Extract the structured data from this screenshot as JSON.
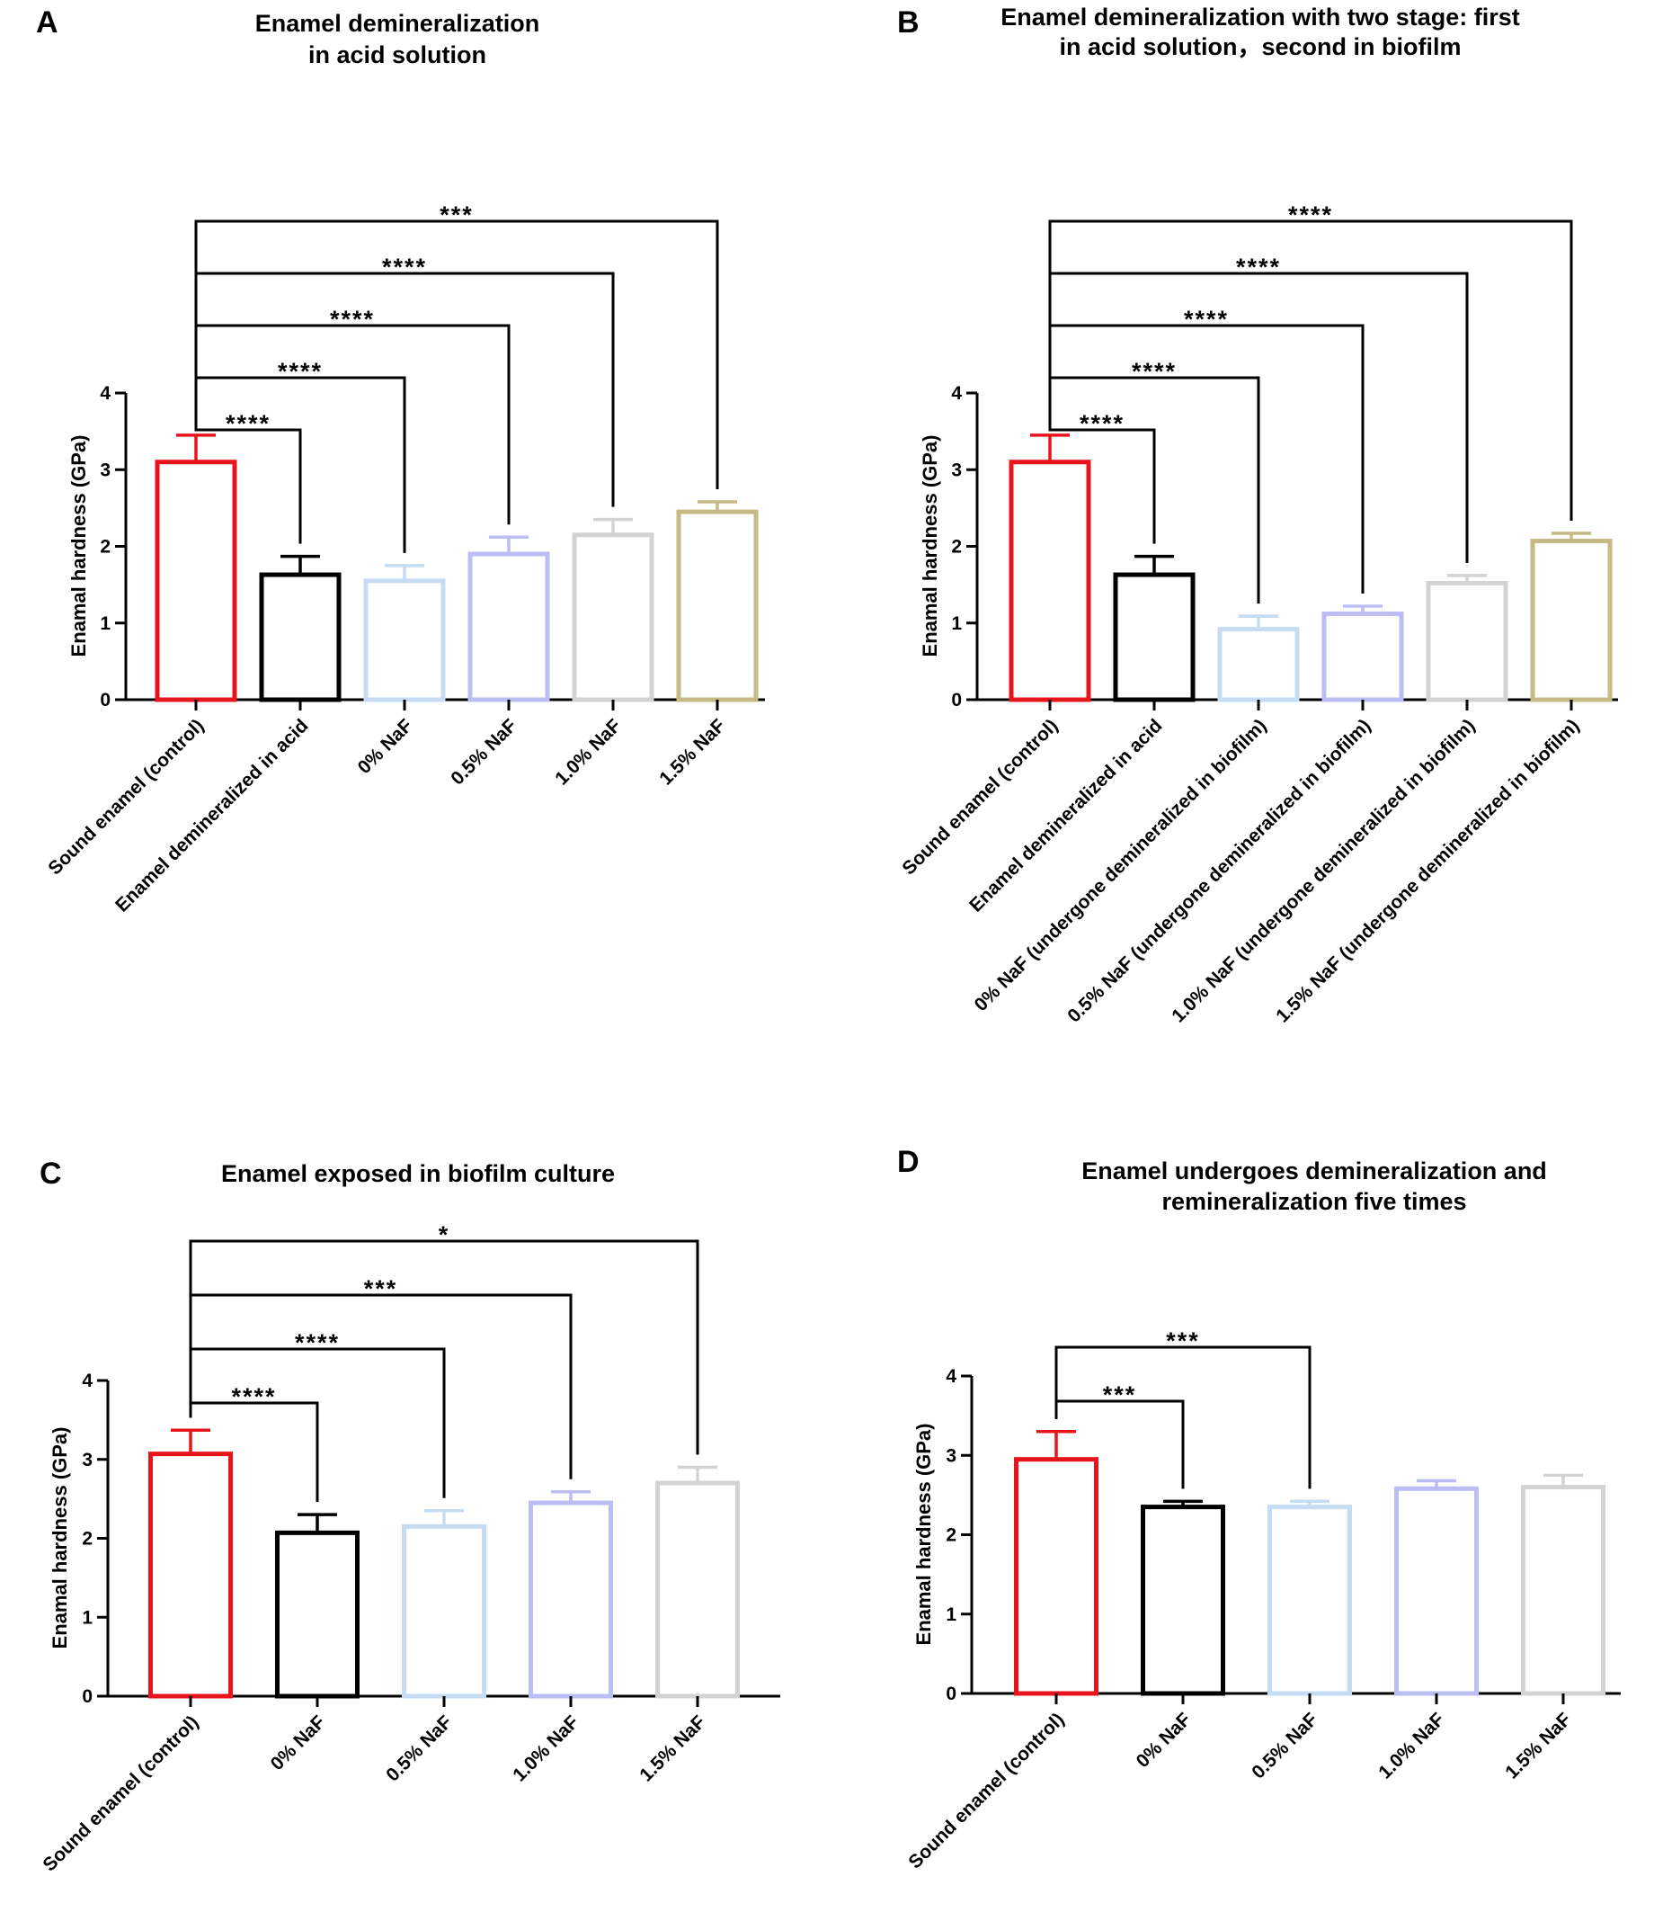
{
  "chart_data": [
    {
      "panel": "A",
      "type": "bar",
      "title": [
        "Enamel demineralization",
        "in acid solution"
      ],
      "ylabel": "Enamal hardness (GPa)",
      "ylim": [
        0,
        4
      ],
      "yticks": [
        "0",
        "1",
        "2",
        "3",
        "4"
      ],
      "categories": [
        "Sound enamel (control)",
        "Enamel demineralized in acid",
        "0%  NaF",
        "0.5% NaF",
        "1.0% NaF",
        "1.5% NaF"
      ],
      "values": [
        3.1,
        1.63,
        1.55,
        1.9,
        2.15,
        2.45
      ],
      "errors": [
        0.35,
        0.24,
        0.2,
        0.22,
        0.2,
        0.13
      ],
      "colors": [
        "#e8141c",
        "#000000",
        "#c6dcf3",
        "#bcbdf2",
        "#d3d3d3",
        "#c7b985"
      ],
      "comparisons": [
        {
          "to": 1,
          "label": "****"
        },
        {
          "to": 2,
          "label": "****"
        },
        {
          "to": 3,
          "label": "****"
        },
        {
          "to": 4,
          "label": "****"
        },
        {
          "to": 5,
          "label": "***"
        }
      ]
    },
    {
      "panel": "B",
      "type": "bar",
      "title": [
        "Enamel demineralization with two stage: first",
        "in acid solution，second in biofilm"
      ],
      "ylabel": "Enamal hardness (GPa)",
      "ylim": [
        0,
        4
      ],
      "yticks": [
        "0",
        "1",
        "2",
        "3",
        "4"
      ],
      "categories": [
        "Sound enamel (control)",
        "Enamel demineralized in acid",
        "0%  NaF (undergone demineralized in biofilm)",
        "0.5% NaF (undergone demineralized in biofilm)",
        "1.0% NaF (undergone demineralized in biofilm)",
        "1.5% NaF (undergone demineralized in biofilm)"
      ],
      "values": [
        3.1,
        1.63,
        0.92,
        1.12,
        1.52,
        2.07
      ],
      "errors": [
        0.35,
        0.24,
        0.17,
        0.1,
        0.1,
        0.1
      ],
      "colors": [
        "#e8141c",
        "#000000",
        "#c6dcf3",
        "#bcbdf2",
        "#d3d3d3",
        "#c7b985"
      ],
      "comparisons": [
        {
          "to": 1,
          "label": "****"
        },
        {
          "to": 2,
          "label": "****"
        },
        {
          "to": 3,
          "label": "****"
        },
        {
          "to": 4,
          "label": "****"
        },
        {
          "to": 5,
          "label": "****"
        }
      ]
    },
    {
      "panel": "C",
      "type": "bar",
      "title": [
        "Enamel exposed in biofilm culture"
      ],
      "ylabel": "Enamal hardness (GPa)",
      "ylim": [
        0,
        4
      ],
      "yticks": [
        "0",
        "1",
        "2",
        "3",
        "4"
      ],
      "categories": [
        "Sound enamel (control)",
        "0% NaF",
        "0.5% NaF",
        "1.0% NaF",
        "1.5% NaF"
      ],
      "values": [
        3.07,
        2.07,
        2.15,
        2.45,
        2.7
      ],
      "errors": [
        0.3,
        0.23,
        0.2,
        0.14,
        0.2
      ],
      "colors": [
        "#e8141c",
        "#000000",
        "#c6dcf3",
        "#bcbdf2",
        "#d3d3d3"
      ],
      "comparisons": [
        {
          "to": 1,
          "label": "****"
        },
        {
          "to": 2,
          "label": "****"
        },
        {
          "to": 3,
          "label": "***"
        },
        {
          "to": 4,
          "label": "*"
        }
      ]
    },
    {
      "panel": "D",
      "type": "bar",
      "title": [
        "Enamel undergoes demineralization and",
        "remineralization five times"
      ],
      "ylabel": "Enamal hardness (GPa)",
      "ylim": [
        0,
        4
      ],
      "yticks": [
        "0",
        "1",
        "2",
        "3",
        "4"
      ],
      "categories": [
        "Sound enamel (control)",
        "0% NaF",
        "0.5% NaF",
        "1.0% NaF",
        "1.5% NaF"
      ],
      "values": [
        2.95,
        2.35,
        2.35,
        2.58,
        2.6
      ],
      "errors": [
        0.35,
        0.07,
        0.07,
        0.1,
        0.15
      ],
      "colors": [
        "#e8141c",
        "#000000",
        "#c6dcf3",
        "#bcbdf2",
        "#d3d3d3"
      ],
      "comparisons": [
        {
          "to": 1,
          "label": "***"
        },
        {
          "to": 2,
          "label": "***"
        }
      ]
    }
  ]
}
